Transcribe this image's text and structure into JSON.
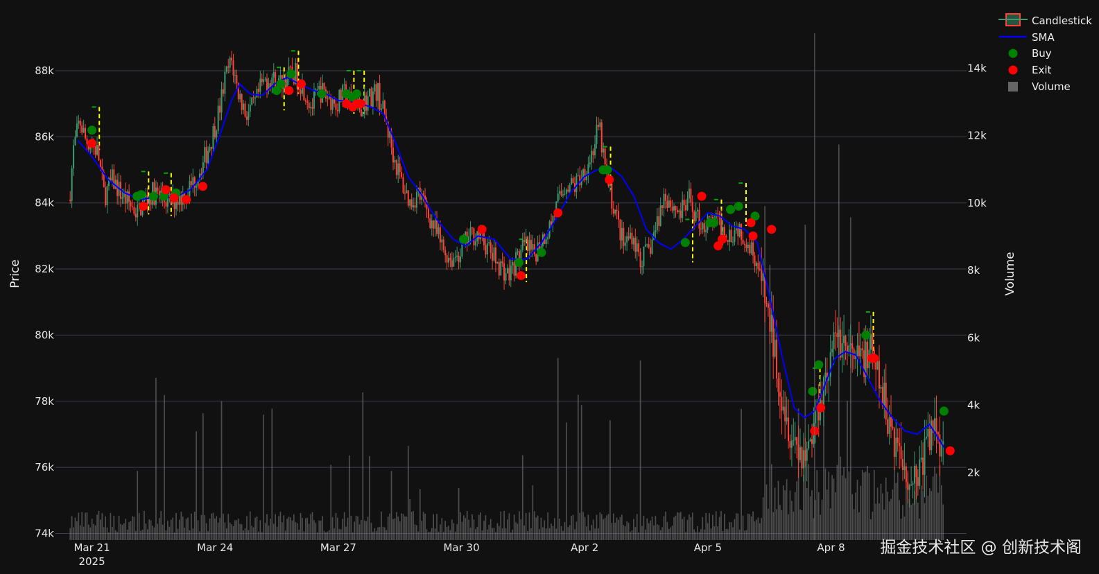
{
  "chart_data": {
    "type": "candlestick",
    "ylabel": "Price",
    "y2label": "Volume",
    "ylim": [
      73800,
      89300
    ],
    "y2lim": [
      0,
      15200
    ],
    "xlim_days": [
      -0.55,
      21.3
    ],
    "x_tick_labels": [
      "Mar 21\n2025",
      "Mar 24",
      "Mar 27",
      "Mar 30",
      "Apr 2",
      "Apr 5",
      "Apr 8"
    ],
    "x_tick_days": [
      0,
      3,
      6,
      9,
      12,
      15,
      18
    ],
    "y_ticks": [
      74000,
      76000,
      78000,
      80000,
      82000,
      84000,
      86000,
      88000
    ],
    "y_tick_labels": [
      "74k",
      "76k",
      "78k",
      "80k",
      "82k",
      "84k",
      "86k",
      "88k"
    ],
    "y2_ticks": [
      2000,
      4000,
      6000,
      8000,
      10000,
      12000,
      14000
    ],
    "y2_tick_labels": [
      "2k",
      "4k",
      "6k",
      "8k",
      "10k",
      "12k",
      "14k"
    ],
    "price_path": [
      [
        -0.55,
        84100
      ],
      [
        -0.45,
        85600
      ],
      [
        -0.3,
        86500
      ],
      [
        -0.15,
        85900
      ],
      [
        0.0,
        85800
      ],
      [
        0.15,
        85500
      ],
      [
        0.3,
        84200
      ],
      [
        0.5,
        84700
      ],
      [
        0.7,
        84300
      ],
      [
        0.9,
        84000
      ],
      [
        1.1,
        83700
      ],
      [
        1.3,
        84100
      ],
      [
        1.5,
        84300
      ],
      [
        1.7,
        84200
      ],
      [
        1.9,
        84000
      ],
      [
        2.1,
        84150
      ],
      [
        2.3,
        84300
      ],
      [
        2.5,
        84700
      ],
      [
        2.7,
        85200
      ],
      [
        2.9,
        85900
      ],
      [
        3.1,
        86800
      ],
      [
        3.25,
        87800
      ],
      [
        3.4,
        88300
      ],
      [
        3.55,
        87400
      ],
      [
        3.75,
        86700
      ],
      [
        3.95,
        86900
      ],
      [
        4.15,
        87600
      ],
      [
        4.35,
        87800
      ],
      [
        4.55,
        87600
      ],
      [
        4.75,
        87800
      ],
      [
        4.95,
        87900
      ],
      [
        5.15,
        87500
      ],
      [
        5.35,
        86900
      ],
      [
        5.55,
        87400
      ],
      [
        5.75,
        87200
      ],
      [
        5.95,
        87000
      ],
      [
        6.15,
        87300
      ],
      [
        6.35,
        87000
      ],
      [
        6.55,
        86900
      ],
      [
        6.75,
        87200
      ],
      [
        6.95,
        87400
      ],
      [
        7.15,
        86500
      ],
      [
        7.35,
        85400
      ],
      [
        7.55,
        84600
      ],
      [
        7.75,
        84000
      ],
      [
        7.95,
        84300
      ],
      [
        8.15,
        83800
      ],
      [
        8.35,
        83200
      ],
      [
        8.55,
        82600
      ],
      [
        8.75,
        82300
      ],
      [
        8.95,
        82500
      ],
      [
        9.15,
        82900
      ],
      [
        9.35,
        83100
      ],
      [
        9.55,
        82800
      ],
      [
        9.75,
        82400
      ],
      [
        9.95,
        82100
      ],
      [
        10.15,
        81800
      ],
      [
        10.35,
        82300
      ],
      [
        10.55,
        82700
      ],
      [
        10.75,
        82400
      ],
      [
        10.95,
        82900
      ],
      [
        11.15,
        83300
      ],
      [
        11.35,
        84000
      ],
      [
        11.55,
        84600
      ],
      [
        11.75,
        84500
      ],
      [
        11.95,
        84900
      ],
      [
        12.15,
        85400
      ],
      [
        12.35,
        86300
      ],
      [
        12.55,
        84600
      ],
      [
        12.75,
        83700
      ],
      [
        12.95,
        82700
      ],
      [
        13.15,
        83100
      ],
      [
        13.35,
        82300
      ],
      [
        13.55,
        82500
      ],
      [
        13.75,
        83300
      ],
      [
        13.95,
        84300
      ],
      [
        14.15,
        83900
      ],
      [
        14.35,
        83700
      ],
      [
        14.55,
        84100
      ],
      [
        14.75,
        83500
      ],
      [
        14.95,
        83300
      ],
      [
        15.15,
        83500
      ],
      [
        15.35,
        83200
      ],
      [
        15.55,
        83100
      ],
      [
        15.75,
        83300
      ],
      [
        15.95,
        82900
      ],
      [
        16.15,
        82400
      ],
      [
        16.35,
        81300
      ],
      [
        16.55,
        80100
      ],
      [
        16.75,
        78600
      ],
      [
        16.95,
        77400
      ],
      [
        17.15,
        76700
      ],
      [
        17.35,
        76400
      ],
      [
        17.55,
        77100
      ],
      [
        17.75,
        78300
      ],
      [
        17.95,
        79100
      ],
      [
        18.15,
        80000
      ],
      [
        18.35,
        79700
      ],
      [
        18.55,
        79100
      ],
      [
        18.75,
        79300
      ],
      [
        18.95,
        79500
      ],
      [
        19.15,
        78600
      ],
      [
        19.35,
        77700
      ],
      [
        19.55,
        76900
      ],
      [
        19.75,
        76200
      ],
      [
        19.95,
        75600
      ],
      [
        20.15,
        75900
      ],
      [
        20.35,
        76800
      ],
      [
        20.55,
        77300
      ],
      [
        20.75,
        76600
      ]
    ],
    "sma": [
      [
        -0.35,
        85900
      ],
      [
        0.0,
        85400
      ],
      [
        0.4,
        84700
      ],
      [
        0.8,
        84300
      ],
      [
        1.2,
        84100
      ],
      [
        1.6,
        84200
      ],
      [
        2.0,
        84150
      ],
      [
        2.4,
        84400
      ],
      [
        2.8,
        85000
      ],
      [
        3.1,
        86000
      ],
      [
        3.4,
        87100
      ],
      [
        3.6,
        87600
      ],
      [
        3.85,
        87300
      ],
      [
        4.15,
        87250
      ],
      [
        4.45,
        87600
      ],
      [
        4.75,
        87800
      ],
      [
        5.05,
        87600
      ],
      [
        5.4,
        87400
      ],
      [
        5.7,
        87300
      ],
      [
        6.0,
        87100
      ],
      [
        6.4,
        87050
      ],
      [
        6.8,
        86900
      ],
      [
        7.1,
        86700
      ],
      [
        7.4,
        85800
      ],
      [
        7.7,
        84800
      ],
      [
        8.0,
        84300
      ],
      [
        8.4,
        83500
      ],
      [
        8.8,
        82900
      ],
      [
        9.1,
        82700
      ],
      [
        9.4,
        83000
      ],
      [
        9.8,
        82900
      ],
      [
        10.2,
        82300
      ],
      [
        10.6,
        82300
      ],
      [
        10.95,
        82800
      ],
      [
        11.3,
        83500
      ],
      [
        11.65,
        84300
      ],
      [
        12.0,
        84800
      ],
      [
        12.3,
        85000
      ],
      [
        12.6,
        85100
      ],
      [
        12.9,
        84800
      ],
      [
        13.2,
        84200
      ],
      [
        13.5,
        83200
      ],
      [
        13.8,
        82800
      ],
      [
        14.1,
        82600
      ],
      [
        14.4,
        82900
      ],
      [
        14.7,
        83300
      ],
      [
        15.0,
        83700
      ],
      [
        15.3,
        83600
      ],
      [
        15.6,
        83300
      ],
      [
        15.9,
        83200
      ],
      [
        16.2,
        82800
      ],
      [
        16.5,
        81200
      ],
      [
        16.8,
        79400
      ],
      [
        17.1,
        77800
      ],
      [
        17.35,
        77500
      ],
      [
        17.6,
        77700
      ],
      [
        17.85,
        78500
      ],
      [
        18.1,
        79300
      ],
      [
        18.35,
        79500
      ],
      [
        18.6,
        79400
      ],
      [
        18.9,
        78700
      ],
      [
        19.2,
        78000
      ],
      [
        19.5,
        77500
      ],
      [
        19.8,
        77100
      ],
      [
        20.1,
        77000
      ],
      [
        20.4,
        77300
      ],
      [
        20.75,
        76600
      ]
    ],
    "buy_signals": [
      [
        0.0,
        86200
      ],
      [
        1.1,
        84200
      ],
      [
        1.2,
        84250
      ],
      [
        1.5,
        84200
      ],
      [
        1.75,
        84200
      ],
      [
        2.05,
        84300
      ],
      [
        4.5,
        87400
      ],
      [
        4.6,
        87600
      ],
      [
        4.85,
        87900
      ],
      [
        5.6,
        87300
      ],
      [
        6.2,
        87300
      ],
      [
        6.35,
        87200
      ],
      [
        6.45,
        87300
      ],
      [
        9.05,
        82900
      ],
      [
        10.4,
        82200
      ],
      [
        10.95,
        82500
      ],
      [
        12.45,
        85000
      ],
      [
        12.55,
        85000
      ],
      [
        14.45,
        82800
      ],
      [
        15.05,
        83400
      ],
      [
        15.15,
        83400
      ],
      [
        15.55,
        83800
      ],
      [
        15.75,
        83900
      ],
      [
        16.15,
        83600
      ],
      [
        17.55,
        78300
      ],
      [
        17.7,
        79100
      ],
      [
        18.85,
        80000
      ],
      [
        20.75,
        77700
      ]
    ],
    "exit_signals": [
      [
        0.0,
        85800
      ],
      [
        1.25,
        83900
      ],
      [
        1.8,
        84400
      ],
      [
        2.0,
        84150
      ],
      [
        2.3,
        84100
      ],
      [
        2.7,
        84500
      ],
      [
        4.8,
        87400
      ],
      [
        5.1,
        87600
      ],
      [
        6.2,
        87000
      ],
      [
        6.35,
        86900
      ],
      [
        6.45,
        87000
      ],
      [
        6.55,
        87000
      ],
      [
        9.5,
        83200
      ],
      [
        10.45,
        81800
      ],
      [
        11.35,
        83700
      ],
      [
        12.6,
        84700
      ],
      [
        14.85,
        84200
      ],
      [
        15.25,
        82700
      ],
      [
        15.35,
        82900
      ],
      [
        16.05,
        83400
      ],
      [
        16.1,
        83000
      ],
      [
        16.55,
        83200
      ],
      [
        17.6,
        77100
      ],
      [
        17.75,
        77800
      ],
      [
        19.0,
        79300
      ],
      [
        19.05,
        79300
      ],
      [
        20.9,
        76500
      ]
    ],
    "legend": [
      "Candlestick",
      "SMA",
      "Buy",
      "Exit",
      "Volume"
    ],
    "colors": {
      "up": "#3d9970",
      "down": "#ff4136",
      "sma": "#0000ff",
      "buy": "#008000",
      "exit": "#ff0000",
      "volume": "#808080",
      "target": "#00aa00",
      "stop": "#ffff00",
      "grid": "#3a3f4b",
      "bg": "#111111"
    }
  },
  "watermark": "掘金技术社区 @ 创新技术阁"
}
